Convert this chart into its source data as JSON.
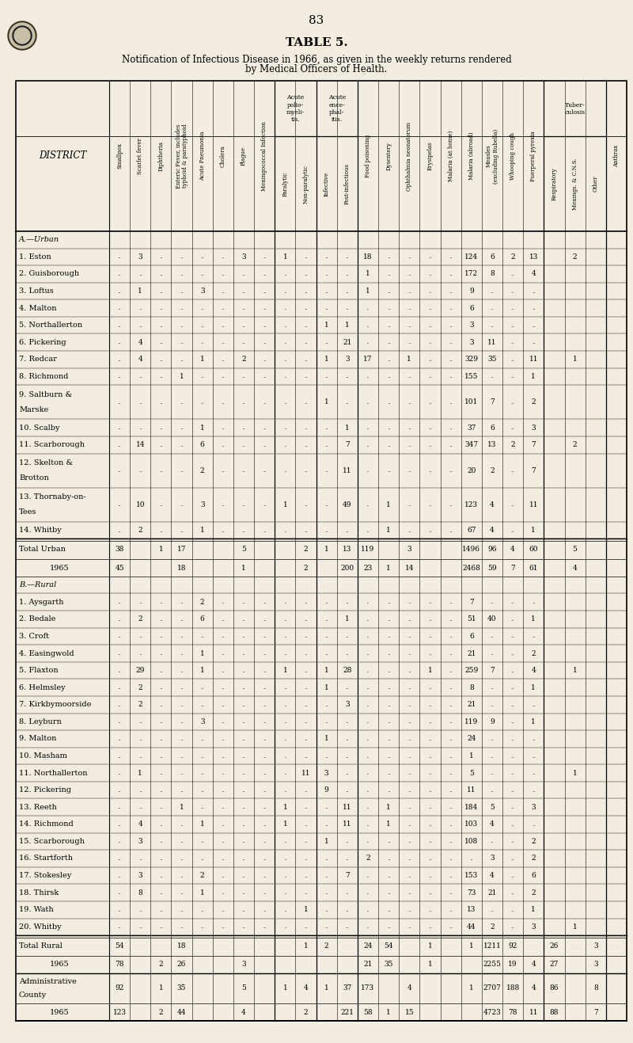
{
  "page_number": "83",
  "title": "TABLE 5.",
  "subtitle1": "Notification of Infectious Disease in 1966, as given in the weekly returns rendered",
  "subtitle2": "by Medical Officers of Health.",
  "bg_color": "#f2ede0",
  "col_labels": [
    "Smallpox",
    "Scarlet fever",
    "Diphtheria",
    "Enteric Fever, includes\ntyphoid & paratyphoid",
    "Acute Pneumonia",
    "Cholera",
    "Plague",
    "Meningococcal Infection",
    "Paralytic",
    "Non-paralytic",
    "Infective",
    "Post-infectious",
    "Food poisoning",
    "Dysentery",
    "Ophthalmia neonatorum",
    "Erysipelas",
    "Malaria (at home)",
    "Malaria (abroad)",
    "Measles\n(excluding Rubella)",
    "Whooping cough",
    "Puerperal pyrexia",
    "Respiratory",
    "Menings. & C.N.S.",
    "Other",
    "Anthrax"
  ],
  "rows": [
    {
      "label": "A.—Urban",
      "type": "section",
      "data": null
    },
    {
      "label": "1. Eston",
      "type": "data",
      "data": [
        "",
        "3",
        "",
        "",
        "",
        "",
        "3",
        "",
        "1",
        "",
        "",
        "",
        "18",
        "",
        "",
        "",
        "",
        "124",
        "6",
        "2",
        "13",
        "",
        "2",
        "",
        ""
      ]
    },
    {
      "label": "2. Guisborough",
      "type": "data",
      "data": [
        "",
        "",
        "",
        "",
        "",
        "",
        "",
        "",
        "",
        "",
        "",
        "",
        "1",
        "",
        "",
        "",
        "",
        "172",
        "8",
        "",
        "4",
        "",
        "",
        "",
        ""
      ]
    },
    {
      "label": "3. Loftus",
      "type": "data",
      "data": [
        "",
        "1",
        "",
        "",
        "3",
        "",
        "",
        "",
        "",
        "",
        "",
        "",
        "1",
        "",
        "",
        "",
        "",
        "9",
        "",
        "",
        "",
        "",
        "",
        "",
        ""
      ]
    },
    {
      "label": "4. Malton",
      "type": "data",
      "data": [
        "",
        "",
        "",
        "",
        "",
        "",
        "",
        "",
        "",
        "",
        "",
        "",
        "",
        "",
        "",
        "",
        "",
        "6",
        "",
        "",
        "",
        "",
        "",
        "",
        ""
      ]
    },
    {
      "label": "5. Northallerton",
      "type": "data",
      "data": [
        "",
        "",
        "",
        "",
        "",
        "",
        "",
        "",
        "",
        "",
        "1",
        "1",
        "",
        "",
        "",
        "",
        "",
        "3",
        "",
        "",
        "",
        "",
        "",
        "",
        ""
      ]
    },
    {
      "label": "6. Pickering",
      "type": "data",
      "data": [
        "",
        "4",
        "",
        "",
        "",
        "",
        "",
        "",
        "",
        "",
        "",
        "21",
        "",
        "",
        "",
        "",
        "",
        "3",
        "11",
        "",
        "",
        "",
        "",
        "",
        ""
      ]
    },
    {
      "label": "7. Redcar",
      "type": "data",
      "data": [
        "",
        "4",
        "",
        "",
        "1",
        "",
        "2",
        "",
        "",
        "",
        "1",
        "3",
        "17",
        "",
        "1",
        "",
        "",
        "329",
        "35",
        "",
        "11",
        "",
        "1",
        "",
        ""
      ]
    },
    {
      "label": "8. Richmond",
      "type": "data",
      "data": [
        "",
        "",
        "",
        "1",
        "",
        "",
        "",
        "",
        "",
        "",
        "",
        "",
        "",
        "",
        "",
        "",
        "",
        "155",
        "",
        "",
        "1",
        "",
        "",
        "",
        ""
      ]
    },
    {
      "label": "9. Saltburn &\nMarske",
      "type": "data2",
      "data": [
        "",
        "",
        "",
        "",
        "",
        "",
        "",
        "",
        "",
        "",
        "1",
        "",
        "",
        "",
        "",
        "",
        "",
        "101",
        "7",
        "",
        "2",
        "",
        "",
        "",
        ""
      ]
    },
    {
      "label": "10. Scalby",
      "type": "data",
      "data": [
        "",
        "",
        "",
        "",
        "1",
        "",
        "",
        "",
        "",
        "",
        "",
        "1",
        "",
        "",
        "",
        "",
        "",
        "37",
        "6",
        "",
        "3",
        "",
        "",
        "",
        ""
      ]
    },
    {
      "label": "11. Scarborough",
      "type": "data",
      "data": [
        "",
        "14",
        "",
        "",
        "6",
        "",
        "",
        "",
        "",
        "",
        "",
        "7",
        "",
        "",
        "",
        "",
        "",
        "347",
        "13",
        "2",
        "7",
        "",
        "2",
        "",
        ""
      ]
    },
    {
      "label": "12. Skelton &\nBrotton",
      "type": "data2",
      "data": [
        "",
        "",
        "",
        "",
        "2",
        "",
        "",
        "",
        "",
        "",
        "",
        "11",
        "",
        "",
        "",
        "",
        "",
        "20",
        "2",
        "",
        "7",
        "",
        "",
        "",
        ""
      ]
    },
    {
      "label": "13. Thornaby-on-\nTees",
      "type": "data2",
      "data": [
        "",
        "10",
        "",
        "",
        "3",
        "",
        "",
        "",
        "1",
        "",
        "",
        "49",
        "",
        "1",
        "",
        "",
        "",
        "123",
        "4",
        "",
        "11",
        "",
        "",
        "",
        ""
      ]
    },
    {
      "label": "14. Whitby",
      "type": "data",
      "data": [
        "",
        "2",
        "",
        "",
        "1",
        "",
        "",
        "",
        "",
        "",
        "",
        "",
        "",
        "1",
        "",
        "",
        "",
        "67",
        "4",
        "",
        "1",
        "",
        "",
        "",
        ""
      ]
    },
    {
      "label": "Total Urban",
      "type": "total",
      "data": [
        "38",
        "",
        "1",
        "17",
        "",
        "",
        "5",
        "",
        "",
        "2",
        "1",
        "13",
        "119",
        "",
        "3",
        "",
        "",
        "1496",
        "96",
        "4",
        "60",
        "",
        "5",
        "",
        ""
      ]
    },
    {
      "label": "1965",
      "type": "yr1965",
      "data": [
        "45",
        "",
        "",
        "18",
        "",
        "",
        "1",
        "",
        "",
        "2",
        "",
        "200",
        "23",
        "1",
        "14",
        "",
        "",
        "2468",
        "59",
        "7",
        "61",
        "",
        "4",
        "",
        ""
      ]
    },
    {
      "label": "B.—Rural",
      "type": "section",
      "data": null
    },
    {
      "label": "1. Aysgarth",
      "type": "data",
      "data": [
        "",
        "",
        "",
        "",
        "2",
        "",
        "",
        "",
        "",
        "",
        "",
        "",
        "",
        "",
        "",
        "",
        "",
        "7",
        "",
        "",
        "",
        "",
        "",
        "",
        ""
      ]
    },
    {
      "label": "2. Bedale",
      "type": "data",
      "data": [
        "",
        "2",
        "",
        "",
        "6",
        "",
        "",
        "",
        "",
        "",
        "",
        "1",
        "",
        "",
        "",
        "",
        "",
        "51",
        "40",
        "",
        "1",
        "",
        "",
        "",
        ""
      ]
    },
    {
      "label": "3. Croft",
      "type": "data",
      "data": [
        "",
        "",
        "",
        "",
        "",
        "",
        "",
        "",
        "",
        "",
        "",
        "",
        "",
        "",
        "",
        "",
        "",
        "6",
        "",
        "",
        "",
        "",
        "",
        "",
        ""
      ]
    },
    {
      "label": "4. Easingwold",
      "type": "data",
      "data": [
        "",
        "",
        "",
        "",
        "1",
        "",
        "",
        "",
        "",
        "",
        "",
        "",
        "",
        "",
        "",
        "",
        "",
        "21",
        "",
        "",
        "2",
        "",
        "",
        "",
        ""
      ]
    },
    {
      "label": "5. Flaxton",
      "type": "data",
      "data": [
        "",
        "29",
        "",
        "",
        "1",
        "",
        "",
        "",
        "1",
        "",
        "1",
        "28",
        "",
        "",
        "",
        "1",
        "",
        "259",
        "7",
        "",
        "4",
        "",
        "1",
        "",
        ""
      ]
    },
    {
      "label": "6. Helmsley",
      "type": "data",
      "data": [
        "",
        "2",
        "",
        "",
        "",
        "",
        "",
        "",
        "",
        "",
        "1",
        "",
        "",
        "",
        "",
        "",
        "",
        "8",
        "",
        "",
        "1",
        "",
        "",
        "",
        ""
      ]
    },
    {
      "label": "7. Kirkbymoorside",
      "type": "data",
      "data": [
        "",
        "2",
        "",
        "",
        "",
        "",
        "",
        "",
        "",
        "",
        "",
        "3",
        "",
        "",
        "",
        "",
        "",
        "21",
        "",
        "",
        "",
        "",
        "",
        "",
        ""
      ]
    },
    {
      "label": "8. Leyburn",
      "type": "data",
      "data": [
        "",
        "",
        "",
        "",
        "3",
        "",
        "",
        "",
        "",
        "",
        "",
        "",
        "",
        "",
        "",
        "",
        "",
        "119",
        "9",
        "",
        "1",
        "",
        "",
        "",
        ""
      ]
    },
    {
      "label": "9. Malton",
      "type": "data",
      "data": [
        "",
        "",
        "",
        "",
        "",
        "",
        "",
        "",
        "",
        "",
        "1",
        "",
        "",
        "",
        "",
        "",
        "",
        "24",
        "",
        "",
        "",
        "",
        "",
        "",
        ""
      ]
    },
    {
      "label": "10. Masham",
      "type": "data",
      "data": [
        "",
        "",
        "",
        "",
        "",
        "",
        "",
        "",
        "",
        "",
        "",
        "",
        "",
        "",
        "",
        "",
        "",
        "1",
        "",
        "",
        "",
        "",
        "",
        "",
        ""
      ]
    },
    {
      "label": "11. Northallerton",
      "type": "data",
      "data": [
        "",
        "1",
        "",
        "",
        "",
        "",
        "",
        "",
        "",
        "11",
        "3",
        "",
        "",
        "",
        "",
        "",
        "",
        "5",
        "",
        "",
        "",
        "",
        "1",
        "",
        ""
      ]
    },
    {
      "label": "12. Pickering",
      "type": "data",
      "data": [
        "",
        "",
        "",
        "",
        "",
        "",
        "",
        "",
        "",
        "",
        "9",
        "",
        "",
        "",
        "",
        "",
        "",
        "11",
        "",
        "",
        "",
        "",
        "",
        "",
        ""
      ]
    },
    {
      "label": "13. Reeth",
      "type": "data",
      "data": [
        "",
        "",
        "",
        "1",
        "",
        "",
        "",
        "",
        "1",
        "",
        "",
        "11",
        "",
        "1",
        "",
        "",
        "",
        "184",
        "5",
        "",
        "3",
        "",
        "",
        "",
        ""
      ]
    },
    {
      "label": "14. Richmond",
      "type": "data",
      "data": [
        "",
        "4",
        "",
        "",
        "1",
        "",
        "",
        "",
        "1",
        "",
        "",
        "11",
        "",
        "1",
        "",
        "",
        "",
        "103",
        "4",
        "",
        "",
        "",
        "",
        "",
        ""
      ]
    },
    {
      "label": "15. Scarborough",
      "type": "data",
      "data": [
        "",
        "3",
        "",
        "",
        "",
        "",
        "",
        "",
        "",
        "",
        "1",
        "",
        "",
        "",
        "",
        "",
        "",
        "108",
        "",
        "",
        "2",
        "",
        "",
        "",
        ""
      ]
    },
    {
      "label": "16. Startforth",
      "type": "data",
      "data": [
        "",
        "",
        "",
        "",
        "",
        "",
        "",
        "",
        "",
        "",
        "",
        "",
        "2",
        "",
        "",
        "",
        "",
        "",
        "3",
        "",
        "2",
        "",
        "",
        "",
        ""
      ]
    },
    {
      "label": "17. Stokesley",
      "type": "data",
      "data": [
        "",
        "3",
        "",
        "",
        "2",
        "",
        "",
        "",
        "",
        "",
        "",
        "7",
        "",
        "",
        "",
        "",
        "",
        "153",
        "4",
        "",
        "6",
        "",
        "",
        "",
        ""
      ]
    },
    {
      "label": "18. Thirsk",
      "type": "data",
      "data": [
        "",
        "8",
        "",
        "",
        "1",
        "",
        "",
        "",
        "",
        "",
        "",
        "",
        "",
        "",
        "",
        "",
        "",
        "73",
        "21",
        "",
        "2",
        "",
        "",
        "",
        ""
      ]
    },
    {
      "label": "19. Wath",
      "type": "data",
      "data": [
        "",
        "",
        "",
        "",
        "",
        "",
        "",
        "",
        "",
        "1",
        "",
        "",
        "",
        "",
        "",
        "",
        "",
        "13",
        "",
        "",
        "1",
        "",
        "",
        "",
        ""
      ]
    },
    {
      "label": "20. Whitby",
      "type": "data",
      "data": [
        "",
        "",
        "",
        "",
        "",
        "",
        "",
        "",
        "",
        "",
        "",
        "",
        "",
        "",
        "",
        "",
        "",
        "44",
        "2",
        "",
        "3",
        "",
        "1",
        "",
        ""
      ]
    },
    {
      "label": "Total Rural",
      "type": "total",
      "data": [
        "54",
        "",
        "",
        "18",
        "",
        "",
        "",
        "",
        "",
        "1",
        "2",
        "",
        "24",
        "54",
        "",
        "1",
        "",
        "1",
        "1211",
        "92",
        "",
        "26",
        "",
        "3",
        "",
        ""
      ]
    },
    {
      "label": "1965",
      "type": "yr1965",
      "data": [
        "78",
        "",
        "2",
        "26",
        "",
        "",
        "3",
        "",
        "",
        "",
        "",
        "",
        "21",
        "35",
        "",
        "1",
        "",
        "",
        "2255",
        "19",
        "4",
        "27",
        "",
        "3",
        "",
        ""
      ]
    },
    {
      "label": "Administrative\nCounty",
      "type": "admin",
      "data": [
        "92",
        "",
        "1",
        "35",
        "",
        "",
        "5",
        "",
        "1",
        "4",
        "1",
        "37",
        "173",
        "",
        "4",
        "",
        "",
        "1",
        "2707",
        "188",
        "4",
        "86",
        "",
        "8",
        "",
        ""
      ]
    },
    {
      "label": "1965",
      "type": "yr1965",
      "data": [
        "123",
        "",
        "2",
        "44",
        "",
        "",
        "4",
        "",
        "",
        "2",
        "",
        "221",
        "58",
        "1",
        "15",
        "",
        "",
        "",
        "4723",
        "78",
        "11",
        "88",
        "",
        "7",
        "",
        ""
      ]
    }
  ]
}
